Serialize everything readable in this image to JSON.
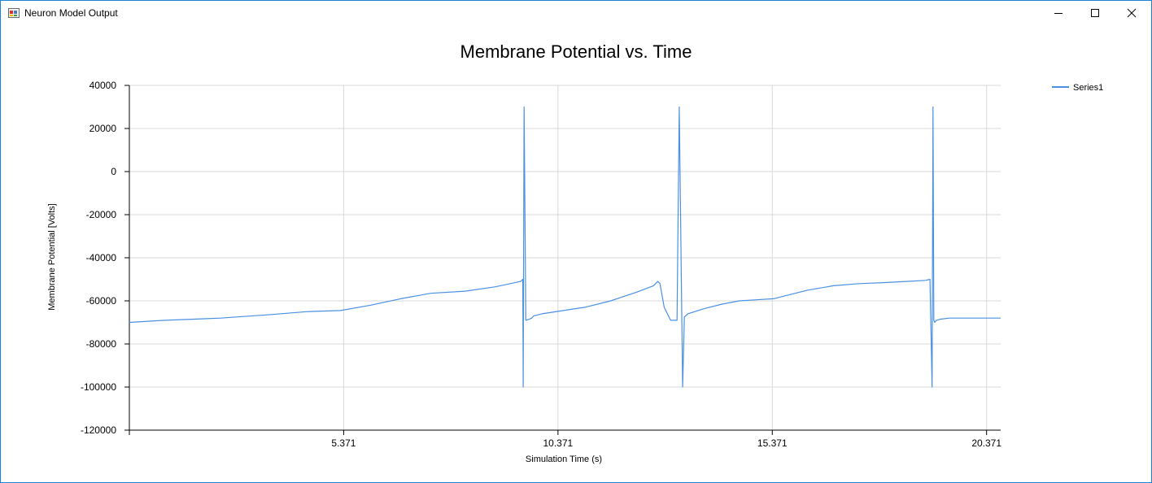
{
  "window": {
    "title": "Neuron Model Output",
    "icon": "app-window-icon",
    "controls": [
      "minimize-icon",
      "maximize-icon",
      "close-icon"
    ]
  },
  "chart_data": {
    "type": "line",
    "title": "Membrane Potential vs. Time",
    "xlabel": "Simulation Time (s)",
    "ylabel": "Membrane Potential [Volts]",
    "xlim": [
      0.371,
      20.7
    ],
    "ylim": [
      -120000,
      40000
    ],
    "xticks": [
      5.371,
      10.371,
      15.371,
      20.371
    ],
    "xtick_labels": [
      "5.371",
      "10.371",
      "15.371",
      "20.371"
    ],
    "yticks": [
      40000,
      20000,
      0,
      -20000,
      -40000,
      -60000,
      -80000,
      -100000,
      -120000
    ],
    "ytick_labels": [
      "40000",
      "20000",
      "0",
      "-20000",
      "-40000",
      "-60000",
      "-80000",
      "-100000",
      "-120000"
    ],
    "grid": true,
    "legend": "top-right",
    "series": [
      {
        "name": "Series1",
        "color": "#4a90e2",
        "x": [
          0.37,
          1.2,
          2.5,
          3.6,
          4.5,
          5.3,
          6.0,
          6.7,
          7.4,
          8.2,
          8.9,
          9.5,
          9.55,
          9.56,
          9.58,
          9.62,
          9.7,
          9.76,
          9.8,
          10.0,
          10.5,
          11.0,
          11.6,
          12.2,
          12.6,
          12.7,
          12.75,
          12.85,
          13.0,
          13.15,
          13.2,
          13.28,
          13.32,
          13.4,
          13.8,
          14.2,
          14.6,
          15.0,
          15.4,
          15.8,
          16.2,
          16.8,
          17.4,
          18.0,
          18.5,
          18.95,
          19.05,
          19.1,
          19.12,
          19.14,
          19.16,
          19.2,
          19.3,
          19.5,
          19.8,
          20.0,
          20.4,
          20.7
        ],
        "y": [
          -70000,
          -69000,
          -68000,
          -66500,
          -65000,
          -64500,
          -62000,
          -59000,
          -56500,
          -55500,
          -53500,
          -51000,
          -50000,
          -100000,
          30000,
          -69000,
          -68500,
          -68000,
          -67000,
          -66000,
          -64500,
          -63000,
          -60000,
          -56000,
          -53000,
          -51000,
          -52000,
          -63000,
          -69000,
          -69000,
          30000,
          -100000,
          -67500,
          -66000,
          -63500,
          -61500,
          -60000,
          -59500,
          -59000,
          -57000,
          -55000,
          -53000,
          -52000,
          -51500,
          -51000,
          -50500,
          -50000,
          -100000,
          30000,
          -69000,
          -70000,
          -69000,
          -68500,
          -68000,
          -68000,
          -68000,
          -68000,
          -68000
        ]
      }
    ]
  }
}
